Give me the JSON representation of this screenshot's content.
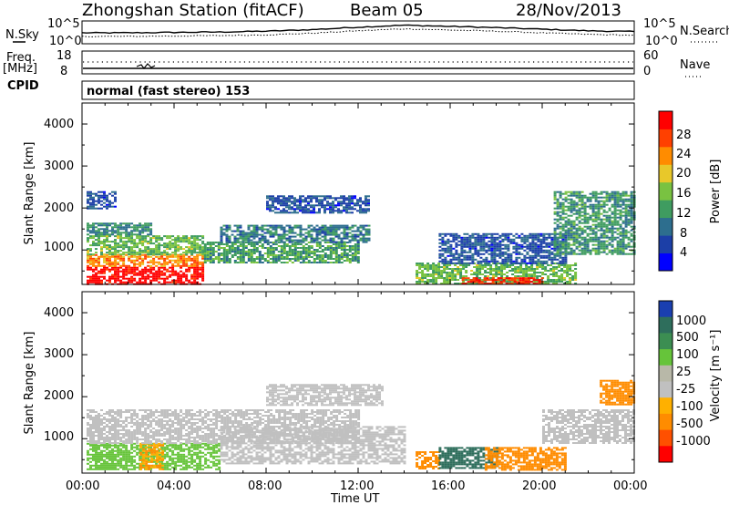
{
  "header": {
    "station": "Zhongshan Station (fitACF)",
    "beam": "Beam 05",
    "date": "28/Nov/2013"
  },
  "noise_panel": {
    "left_label": "N.Sky",
    "right_label": "N.Search",
    "tick_top": "10^5",
    "tick_bottom": "10^0"
  },
  "freq_panel": {
    "left_label_1": "Freq.",
    "left_label_2": "[MHz]",
    "right_label": "Nave",
    "left_ticks": [
      "18",
      "8"
    ],
    "right_ticks": [
      "60",
      "0"
    ]
  },
  "cpid_panel": {
    "label": "CPID",
    "text": "normal (fast stereo) 153"
  },
  "power_panel": {
    "ylabel": "Slant Range [km]",
    "yticks": [
      "4000",
      "3000",
      "2000",
      "1000"
    ],
    "colorbar_label": "Power [dB]",
    "colorbar_ticks": [
      "28",
      "24",
      "20",
      "16",
      "12",
      "8",
      "4"
    ]
  },
  "velocity_panel": {
    "ylabel": "Slant Range [km]",
    "yticks": [
      "4000",
      "3000",
      "2000",
      "1000"
    ],
    "colorbar_label": "Velocity [m s⁻¹]",
    "colorbar_ticks": [
      "1000",
      "500",
      "100",
      "25",
      "-25",
      "-100",
      "-500",
      "-1000"
    ]
  },
  "xaxis": {
    "label": "Time UT",
    "ticks": [
      "00:00",
      "04:00",
      "08:00",
      "12:00",
      "16:00",
      "20:00",
      "00:00"
    ]
  },
  "colors": {
    "power_scale": [
      "#0000ff",
      "#1c3fa7",
      "#2d6e8e",
      "#3f9c60",
      "#79c241",
      "#e8c82a",
      "#ff8c00",
      "#ff4000",
      "#ff0000"
    ],
    "velocity_scale": [
      "#1a3fb0",
      "#2e6e5c",
      "#3c8e52",
      "#66c43a",
      "#b8b8a8",
      "#c0c0c0",
      "#ffb000",
      "#ff8c00",
      "#ff5000",
      "#ff0000"
    ]
  },
  "chart_data": [
    {
      "type": "line",
      "name": "noise",
      "x": [
        "00:00",
        "02:00",
        "04:00",
        "06:00",
        "08:00",
        "10:00",
        "12:00",
        "14:00",
        "16:00",
        "18:00",
        "20:00",
        "22:00",
        "24:00"
      ],
      "series": [
        {
          "name": "N.Sky",
          "values": [
            2.5,
            2.5,
            2.6,
            2.7,
            2.9,
            3.3,
            3.9,
            4.4,
            4.1,
            3.8,
            3.4,
            3.0,
            2.8
          ]
        },
        {
          "name": "N.Search",
          "values": [
            1.6,
            1.6,
            1.7,
            1.8,
            2.0,
            2.4,
            3.0,
            3.5,
            3.2,
            2.9,
            2.5,
            2.1,
            1.9
          ]
        }
      ],
      "ylim": [
        0,
        5
      ],
      "yscale": "log10"
    },
    {
      "type": "scatter",
      "name": "frequency_nave",
      "series": [
        {
          "name": "Freq.",
          "values": [
            10.5,
            10.5,
            10.5,
            10.5,
            10.5,
            10.5,
            10.5,
            10.5,
            10.5,
            10.5,
            10.5,
            10.5,
            10.5
          ]
        },
        {
          "name": "Nave",
          "values": [
            34,
            34,
            34,
            34,
            34,
            34,
            34,
            34,
            34,
            34,
            34,
            34,
            34
          ]
        }
      ],
      "ylim": [
        8,
        18
      ]
    },
    {
      "type": "heatmap",
      "name": "power",
      "x": [
        "00:00",
        "24:00"
      ],
      "ylim": [
        180,
        4500
      ],
      "zlim": [
        0,
        30
      ],
      "regions": [
        {
          "t0": 0.2,
          "t1": 5.3,
          "r0": 200,
          "r1": 600,
          "value": 29
        },
        {
          "t0": 0.2,
          "t1": 5.3,
          "r0": 600,
          "r1": 900,
          "value": 22
        },
        {
          "t0": 0.2,
          "t1": 5.3,
          "r0": 900,
          "r1": 1350,
          "value": 14
        },
        {
          "t0": 0.2,
          "t1": 3.0,
          "r0": 1350,
          "r1": 1650,
          "value": 10
        },
        {
          "t0": 5.3,
          "t1": 12.0,
          "r0": 700,
          "r1": 1200,
          "value": 12
        },
        {
          "t0": 6.0,
          "t1": 12.5,
          "r0": 1200,
          "r1": 1600,
          "value": 9
        },
        {
          "t0": 8.0,
          "t1": 12.5,
          "r0": 1900,
          "r1": 2300,
          "value": 6
        },
        {
          "t0": 0.2,
          "t1": 1.5,
          "r0": 2000,
          "r1": 2400,
          "value": 6
        },
        {
          "t0": 14.5,
          "t1": 21.5,
          "r0": 200,
          "r1": 700,
          "value": 14
        },
        {
          "t0": 16.5,
          "t1": 20.0,
          "r0": 200,
          "r1": 350,
          "value": 27
        },
        {
          "t0": 15.5,
          "t1": 21.0,
          "r0": 700,
          "r1": 1400,
          "value": 6
        },
        {
          "t0": 20.5,
          "t1": 24.0,
          "r0": 900,
          "r1": 2400,
          "value": 11
        }
      ]
    },
    {
      "type": "heatmap",
      "name": "velocity",
      "x": [
        "00:00",
        "24:00"
      ],
      "ylim": [
        180,
        4500
      ],
      "regions": [
        {
          "t0": 0.2,
          "t1": 6.0,
          "r0": 250,
          "r1": 900,
          "value": 60
        },
        {
          "t0": 2.5,
          "t1": 3.5,
          "r0": 250,
          "r1": 900,
          "value": -100
        },
        {
          "t0": 0.2,
          "t1": 12.0,
          "r0": 900,
          "r1": 1700,
          "value": 0
        },
        {
          "t0": 6.0,
          "t1": 14.0,
          "r0": 400,
          "r1": 1300,
          "value": 0
        },
        {
          "t0": 8.0,
          "t1": 13.0,
          "r0": 1800,
          "r1": 2300,
          "value": 0
        },
        {
          "t0": 14.5,
          "t1": 15.5,
          "r0": 300,
          "r1": 700,
          "value": -150
        },
        {
          "t0": 15.5,
          "t1": 18.0,
          "r0": 300,
          "r1": 800,
          "value": 200
        },
        {
          "t0": 17.5,
          "t1": 21.0,
          "r0": 250,
          "r1": 800,
          "value": -200
        },
        {
          "t0": 20.0,
          "t1": 24.0,
          "r0": 900,
          "r1": 1700,
          "value": 0
        },
        {
          "t0": 22.5,
          "t1": 24.0,
          "r0": 1800,
          "r1": 2400,
          "value": -120
        }
      ]
    }
  ]
}
